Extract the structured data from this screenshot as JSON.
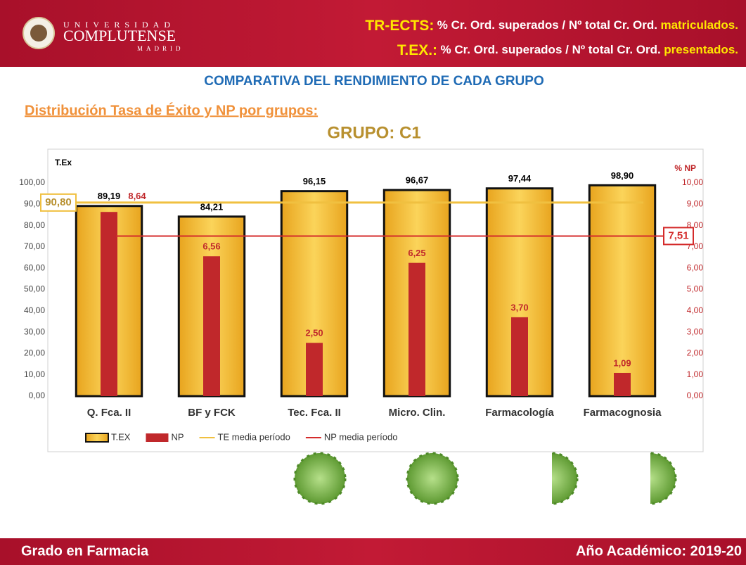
{
  "header": {
    "logo": {
      "line1": "UNIVERSIDAD",
      "line2": "COMPLUTENSE",
      "line3": "MADRID"
    },
    "definitions": [
      {
        "term": "TR-ECTS:",
        "text": "% Cr. Ord. superados / Nº total Cr. Ord.",
        "emphasis": "matriculados."
      },
      {
        "term": "T.EX.:",
        "text": "% Cr. Ord. superados / Nº total Cr. Ord.",
        "emphasis": "presentados."
      }
    ]
  },
  "subtitle": "COMPARATIVA DEL RENDIMIENTO DE CADA GRUPO",
  "section": "Distribución Tasa de Éxito y NP por grupos:",
  "chart_data": {
    "type": "bar",
    "title": "GRUPO: C1",
    "y_label": "T.Ex",
    "y2_label": "% NP",
    "categories": [
      "Q. Fca. II",
      "BF y FCK",
      "Tec. Fca. II",
      "Micro. Clin.",
      "Farmacología",
      "Farmacognosia"
    ],
    "series": [
      {
        "name": "T.EX",
        "color": "#f2b92e",
        "values": [
          89.19,
          84.21,
          96.15,
          96.67,
          97.44,
          98.9
        ],
        "value_labels": [
          "89,19",
          "84,21",
          "96,15",
          "96,67",
          "97,44",
          "98,90"
        ]
      },
      {
        "name": "NP",
        "color": "#c0282b",
        "axis": "y2",
        "values": [
          8.64,
          6.56,
          2.5,
          6.25,
          3.7,
          1.09
        ],
        "value_labels": [
          "8,64",
          "6,56",
          "2,50",
          "6,25",
          "3,70",
          "1,09"
        ]
      },
      {
        "name": "TE media período",
        "type": "line",
        "color": "#f0c040",
        "value": 90.8,
        "value_label": "90,80"
      },
      {
        "name": "NP media período",
        "type": "line",
        "color": "#d42b2b",
        "axis": "y2",
        "value": 7.51,
        "value_label": "7,51"
      }
    ],
    "ylim": [
      0,
      100
    ],
    "yticks": [
      {
        "value": 0,
        "label": "0,00"
      },
      {
        "value": 10,
        "label": "10,00"
      },
      {
        "value": 20,
        "label": "20,00"
      },
      {
        "value": 30,
        "label": "30,00"
      },
      {
        "value": 40,
        "label": "40,00"
      },
      {
        "value": 50,
        "label": "50,00"
      },
      {
        "value": 60,
        "label": "60,00"
      },
      {
        "value": 70,
        "label": "70,00"
      },
      {
        "value": 80,
        "label": "80,00"
      },
      {
        "value": 90,
        "label": "90,00"
      },
      {
        "value": 100,
        "label": "100,00"
      }
    ],
    "y2lim": [
      0,
      10
    ],
    "y2ticks": [
      {
        "value": 0,
        "label": "0,00"
      },
      {
        "value": 1,
        "label": "1,00"
      },
      {
        "value": 2,
        "label": "2,00"
      },
      {
        "value": 3,
        "label": "3,00"
      },
      {
        "value": 4,
        "label": "4,00"
      },
      {
        "value": 5,
        "label": "5,00"
      },
      {
        "value": 6,
        "label": "6,00"
      },
      {
        "value": 7,
        "label": "7,00"
      },
      {
        "value": 8,
        "label": "8,00"
      },
      {
        "value": 9,
        "label": "9,00"
      },
      {
        "value": 10,
        "label": "10,00"
      }
    ]
  },
  "footer": {
    "left": "Grado en Farmacia",
    "right": "Año Académico: 2019-20"
  }
}
